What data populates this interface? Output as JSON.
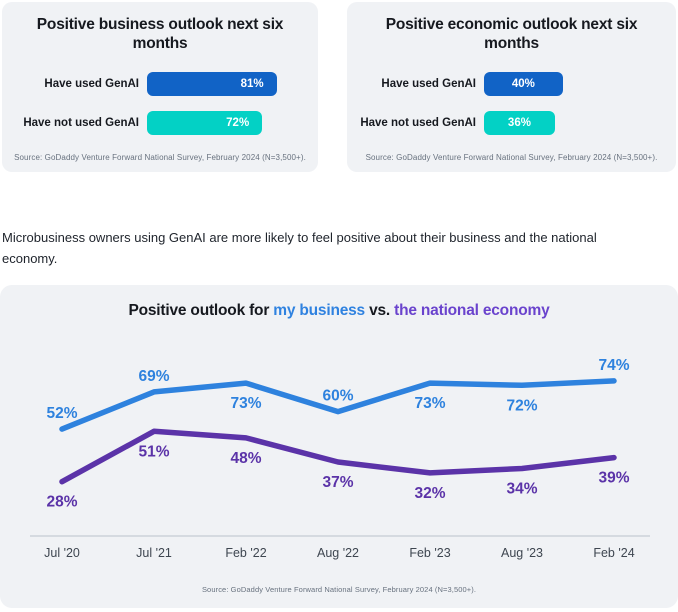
{
  "insight_text": "Microbusiness owners using GenAI are more likely to feel positive about their business and the national economy.",
  "colors": {
    "bar_blue": "#1163c6",
    "bar_teal": "#03d1c5",
    "line_blue": "#2e82de",
    "line_purple": "#5b33a8",
    "title_blue": "#2f82e0",
    "title_purple": "#6a43cd",
    "card_bg": "#f0f2f5",
    "axis": "#ccd1d9"
  },
  "chart_data": [
    {
      "type": "bar",
      "orientation": "horizontal",
      "title": "Positive business outlook next six months",
      "categories": [
        "Have used GenAI",
        "Have not used GenAI"
      ],
      "values": [
        81,
        72
      ],
      "unit": "%",
      "colors": [
        "#1163c6",
        "#03d1c5"
      ],
      "xlim": [
        0,
        100
      ],
      "grid": false,
      "source": "Source: GoDaddy Venture Forward National Survey, February 2024 (N=3,500+)."
    },
    {
      "type": "bar",
      "orientation": "horizontal",
      "title": "Positive economic outlook next six months",
      "categories": [
        "Have used GenAI",
        "Have not used GenAI"
      ],
      "values": [
        40,
        36
      ],
      "unit": "%",
      "colors": [
        "#1163c6",
        "#03d1c5"
      ],
      "xlim": [
        0,
        100
      ],
      "grid": false,
      "source": "Source: GoDaddy Venture Forward National Survey, February 2024 (N=3,500+)."
    },
    {
      "type": "line",
      "title": "Positive outlook for my business vs. the national economy",
      "title_parts": [
        "Positive outlook for",
        "my business",
        "vs.",
        "the national economy"
      ],
      "categories": [
        "Jul '20",
        "Jul '21",
        "Feb '22",
        "Aug '22",
        "Feb '23",
        "Aug '23",
        "Feb '24"
      ],
      "series": [
        {
          "name": "my business",
          "slug": "my-business",
          "color": "#2e82de",
          "values": [
            52,
            69,
            73,
            60,
            73,
            72,
            74
          ],
          "label_positions": [
            "above",
            "above",
            "below",
            "above",
            "below",
            "below",
            "above"
          ]
        },
        {
          "name": "the national economy",
          "slug": "national-economy",
          "color": "#5b33a8",
          "values": [
            28,
            51,
            48,
            37,
            32,
            34,
            39
          ],
          "label_positions": [
            "below",
            "below",
            "below",
            "below",
            "below",
            "below",
            "below"
          ]
        }
      ],
      "unit": "%",
      "ylim": [
        0,
        100
      ],
      "grid": false,
      "legend": "in-title",
      "source": "Source: GoDaddy Venture Forward National Survey, February 2024 (N=3,500+)."
    }
  ]
}
